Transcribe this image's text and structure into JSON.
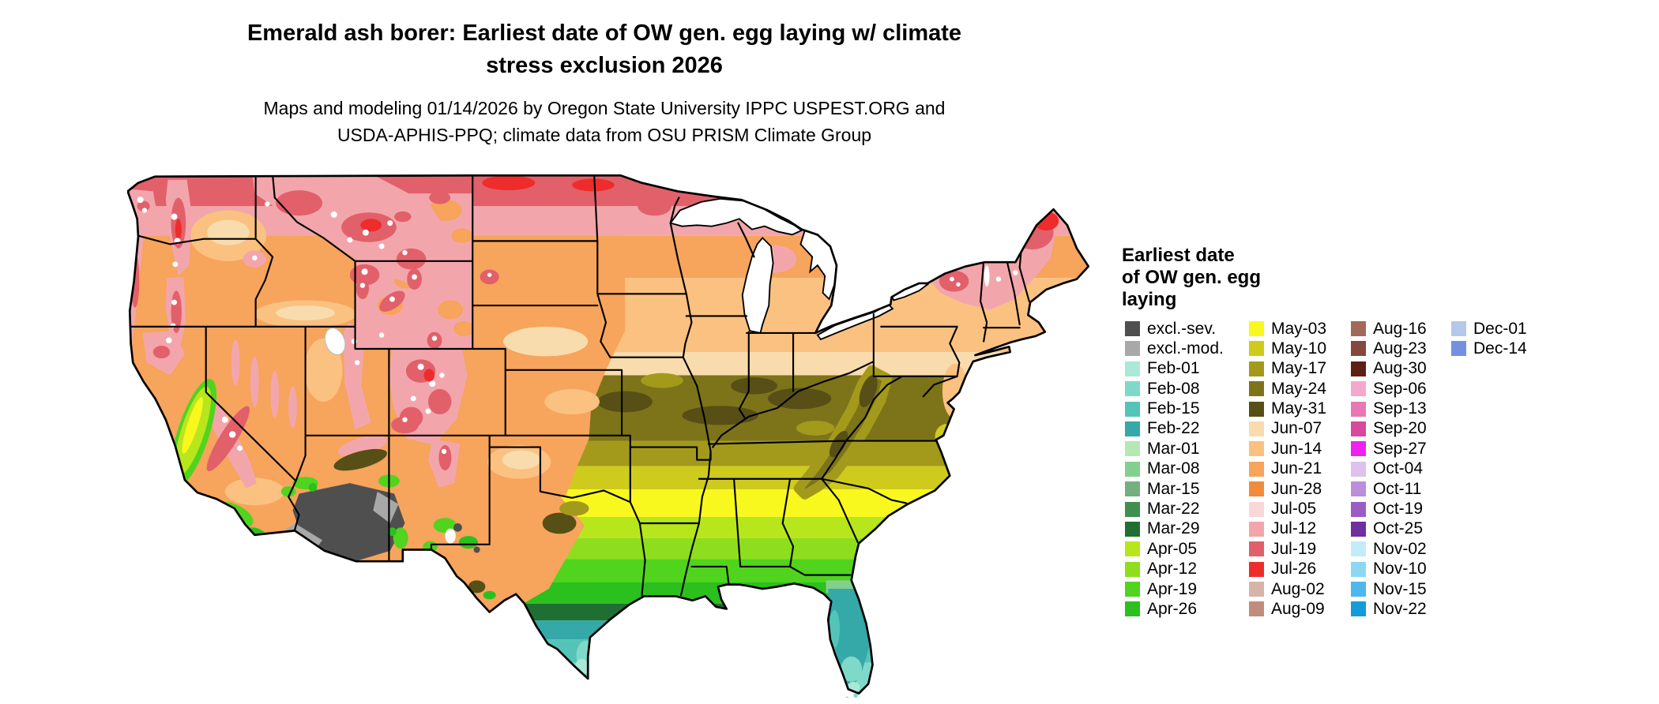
{
  "title": {
    "line1": "Emerald ash borer: Earliest date of OW gen. egg laying w/ climate",
    "line2": "stress exclusion 2026"
  },
  "subtitle": {
    "line1": "Maps and modeling 01/14/2026 by Oregon State University IPPC USPEST.ORG and",
    "line2": "USDA-APHIS-PPQ; climate data from OSU PRISM Climate Group"
  },
  "legend": {
    "title_lines": [
      "Earliest date",
      "of OW gen. egg",
      "laying"
    ],
    "columns": [
      [
        {
          "key": "excl-sev",
          "label": "excl.-sev.",
          "color": "#4f4f4f"
        },
        {
          "key": "excl-mod",
          "label": "excl.-mod.",
          "color": "#a8a8a8"
        },
        {
          "key": "feb-01",
          "label": "Feb-01",
          "color": "#aae8d8"
        },
        {
          "key": "feb-08",
          "label": "Feb-08",
          "color": "#7fd9c8"
        },
        {
          "key": "feb-15",
          "label": "Feb-15",
          "color": "#55c4b8"
        },
        {
          "key": "feb-22",
          "label": "Feb-22",
          "color": "#35a8a8"
        },
        {
          "key": "mar-01",
          "label": "Mar-01",
          "color": "#b4e8b4"
        },
        {
          "key": "mar-08",
          "label": "Mar-08",
          "color": "#84cf8e"
        },
        {
          "key": "mar-15",
          "label": "Mar-15",
          "color": "#74b07e"
        },
        {
          "key": "mar-22",
          "label": "Mar-22",
          "color": "#3f8f4f"
        },
        {
          "key": "mar-29",
          "label": "Mar-29",
          "color": "#1f6f33"
        },
        {
          "key": "apr-05",
          "label": "Apr-05",
          "color": "#b8e61d"
        },
        {
          "key": "apr-12",
          "label": "Apr-12",
          "color": "#8ede1d"
        },
        {
          "key": "apr-19",
          "label": "Apr-19",
          "color": "#50d41e"
        },
        {
          "key": "apr-26",
          "label": "Apr-26",
          "color": "#2cc01e"
        }
      ],
      [
        {
          "key": "may-03",
          "label": "May-03",
          "color": "#f8f81f"
        },
        {
          "key": "may-10",
          "label": "May-10",
          "color": "#cfcb1d"
        },
        {
          "key": "may-17",
          "label": "May-17",
          "color": "#a39a1c"
        },
        {
          "key": "may-24",
          "label": "May-24",
          "color": "#7d741a"
        },
        {
          "key": "may-31",
          "label": "May-31",
          "color": "#574f16"
        },
        {
          "key": "jun-07",
          "label": "Jun-07",
          "color": "#f8dcae"
        },
        {
          "key": "jun-14",
          "label": "Jun-14",
          "color": "#fbc180"
        },
        {
          "key": "jun-21",
          "label": "Jun-21",
          "color": "#f7a45c"
        },
        {
          "key": "jun-28",
          "label": "Jun-28",
          "color": "#f08c3c"
        },
        {
          "key": "jul-05",
          "label": "Jul-05",
          "color": "#f8d8d8"
        },
        {
          "key": "jul-12",
          "label": "Jul-12",
          "color": "#f2a6ac"
        },
        {
          "key": "jul-19",
          "label": "Jul-19",
          "color": "#e2606a"
        },
        {
          "key": "jul-26",
          "label": "Jul-26",
          "color": "#ee2c2c"
        },
        {
          "key": "aug-02",
          "label": "Aug-02",
          "color": "#d8b4a8"
        },
        {
          "key": "aug-09",
          "label": "Aug-09",
          "color": "#c08d7d"
        }
      ],
      [
        {
          "key": "aug-16",
          "label": "Aug-16",
          "color": "#a2695a"
        },
        {
          "key": "aug-23",
          "label": "Aug-23",
          "color": "#84493c"
        },
        {
          "key": "aug-30",
          "label": "Aug-30",
          "color": "#5e1f14"
        },
        {
          "key": "sep-06",
          "label": "Sep-06",
          "color": "#f4a8cc"
        },
        {
          "key": "sep-13",
          "label": "Sep-13",
          "color": "#e878b4"
        },
        {
          "key": "sep-20",
          "label": "Sep-20",
          "color": "#d8489c"
        },
        {
          "key": "sep-27",
          "label": "Sep-27",
          "color": "#ee22ee"
        },
        {
          "key": "oct-04",
          "label": "Oct-04",
          "color": "#dcc2ec"
        },
        {
          "key": "oct-11",
          "label": "Oct-11",
          "color": "#bb8fdc"
        },
        {
          "key": "oct-19",
          "label": "Oct-19",
          "color": "#9b5cc4"
        },
        {
          "key": "oct-25",
          "label": "Oct-25",
          "color": "#6f2f9f"
        },
        {
          "key": "nov-02",
          "label": "Nov-02",
          "color": "#c2ecf8"
        },
        {
          "key": "nov-10",
          "label": "Nov-10",
          "color": "#8cd8f4"
        },
        {
          "key": "nov-15",
          "label": "Nov-15",
          "color": "#4cb8ec"
        },
        {
          "key": "nov-22",
          "label": "Nov-22",
          "color": "#149cd8"
        }
      ],
      [
        {
          "key": "dec-01",
          "label": "Dec-01",
          "color": "#b4c8ec"
        },
        {
          "key": "dec-14",
          "label": "Dec-14",
          "color": "#7490e0"
        }
      ]
    ]
  }
}
